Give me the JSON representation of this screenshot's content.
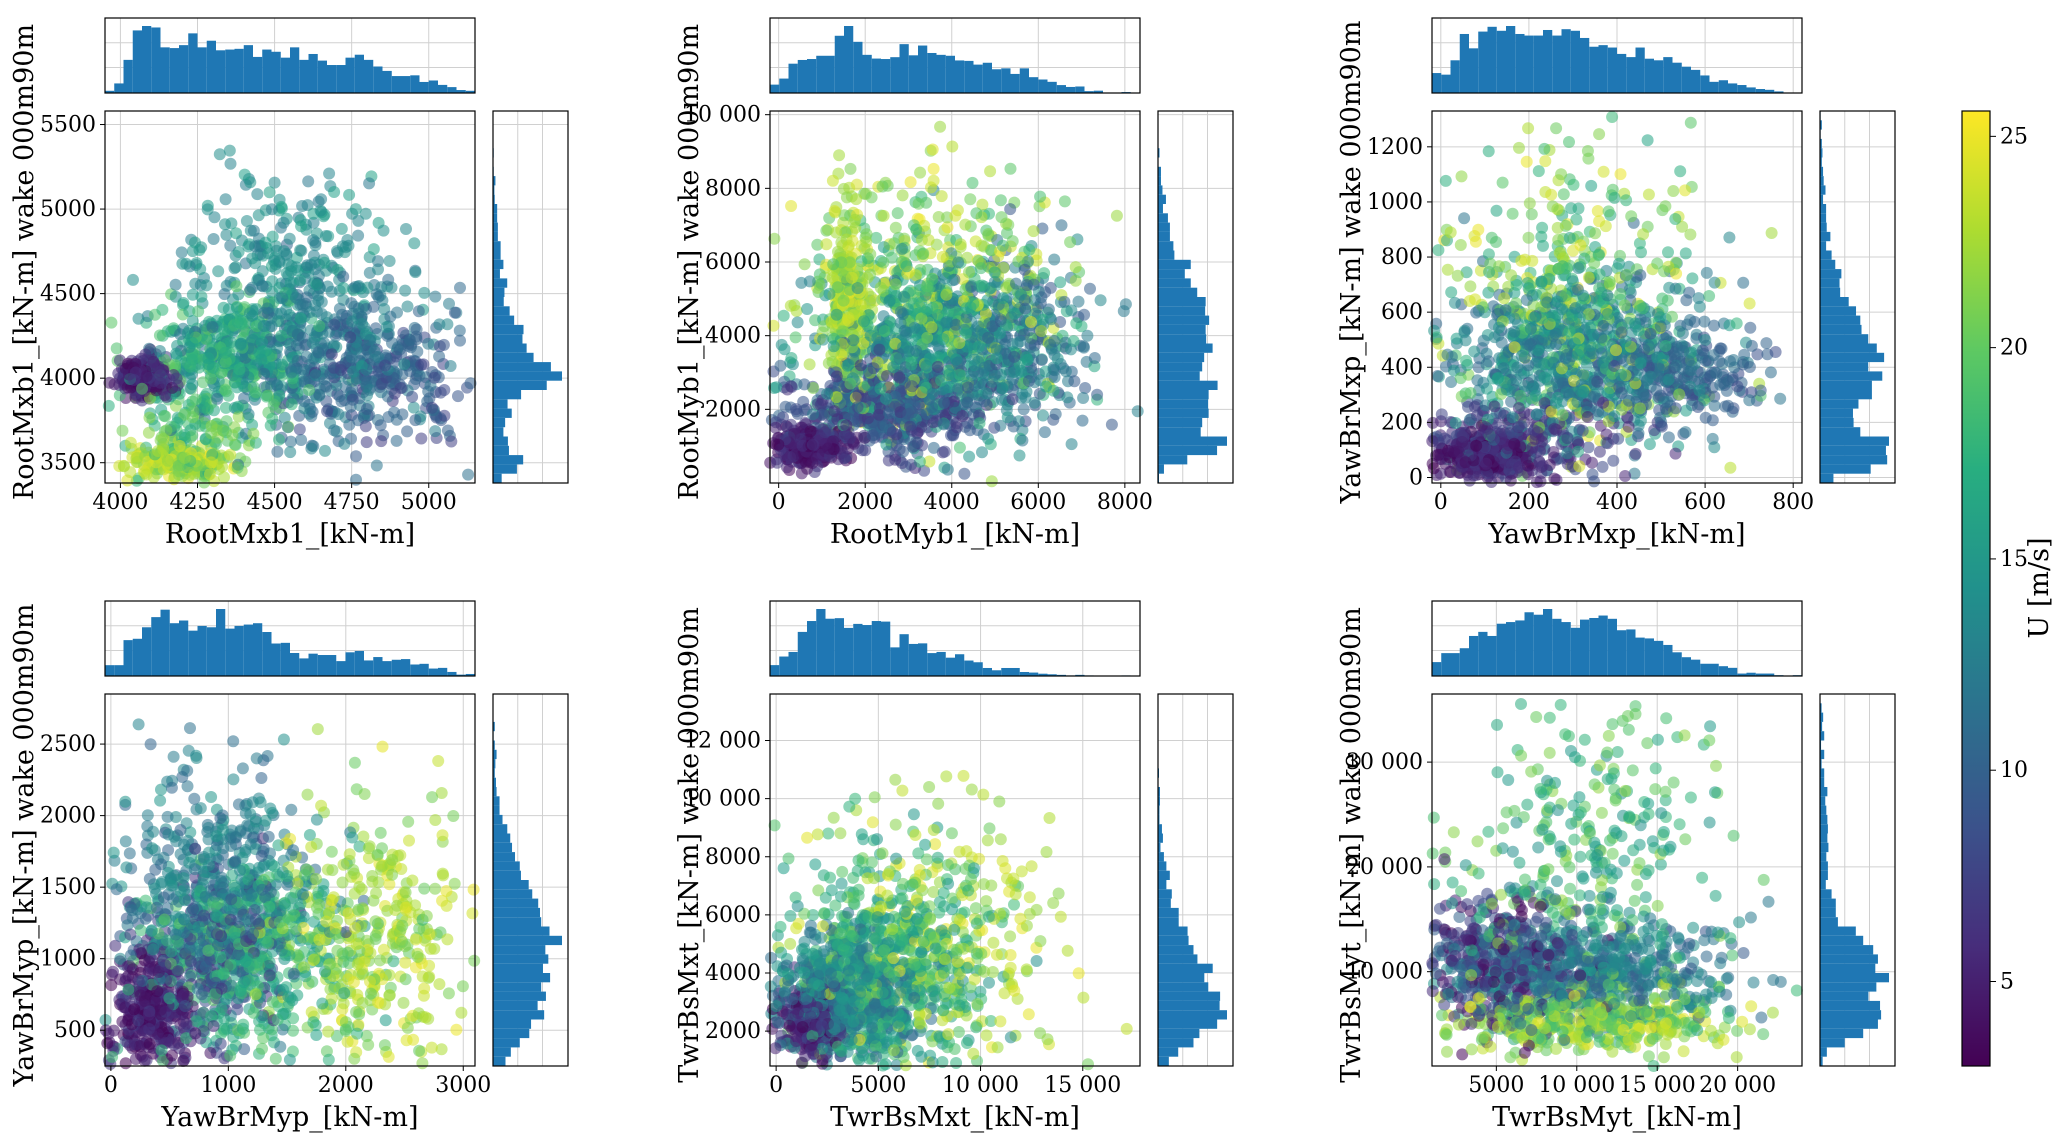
{
  "chart_data": [
    {
      "type": "scatter",
      "xlabel": "RootMxb1_[kN-m]",
      "ylabel": "RootMxb1_[kN-m] wake 000m90m",
      "xlim": [
        3950,
        5150
      ],
      "ylim": [
        3380,
        5580
      ],
      "xticks": [
        4000,
        4250,
        4500,
        4750,
        5000
      ],
      "xtick_labels": [
        "4000",
        "4250",
        "4500",
        "4750",
        "5000"
      ],
      "yticks": [
        3500,
        4000,
        4500,
        5000,
        5500
      ],
      "ytick_labels": [
        "3500",
        "4000",
        "4500",
        "5000",
        "5500"
      ],
      "clusters": [
        {
          "cx": 4080,
          "cy": 4010,
          "sx": 40,
          "sy": 55,
          "u": [
            3,
            7
          ],
          "n": 260
        },
        {
          "cx": 4200,
          "cy": 3500,
          "sx": 90,
          "sy": 50,
          "u": [
            20,
            25
          ],
          "n": 200
        },
        {
          "cx": 4250,
          "cy": 3700,
          "sx": 120,
          "sy": 120,
          "u": [
            16,
            22
          ],
          "n": 130
        },
        {
          "cx": 4350,
          "cy": 4150,
          "sx": 130,
          "sy": 160,
          "u": [
            14,
            20
          ],
          "n": 350
        },
        {
          "cx": 4650,
          "cy": 4150,
          "sx": 230,
          "sy": 250,
          "u": [
            10,
            14
          ],
          "n": 420
        },
        {
          "cx": 4550,
          "cy": 4650,
          "sx": 170,
          "sy": 280,
          "u": [
            12,
            16
          ],
          "n": 260
        },
        {
          "cx": 4850,
          "cy": 4000,
          "sx": 160,
          "sy": 200,
          "u": [
            7,
            11
          ],
          "n": 200
        }
      ]
    },
    {
      "type": "scatter",
      "xlabel": "RootMyb1_[kN-m]",
      "ylabel": "RootMyb1_[kN-m] wake 000m90m",
      "xlim": [
        -200,
        8350
      ],
      "ylim": [
        0,
        10100
      ],
      "xticks": [
        0,
        2000,
        4000,
        6000,
        8000
      ],
      "xtick_labels": [
        "0",
        "2000",
        "4000",
        "6000",
        "8000"
      ],
      "yticks": [
        2000,
        4000,
        6000,
        8000,
        10000
      ],
      "ytick_labels": [
        "2000",
        "4000",
        "6000",
        "8000",
        "10 000"
      ],
      "clusters": [
        {
          "cx": 700,
          "cy": 1000,
          "sx": 450,
          "sy": 250,
          "u": [
            3,
            7
          ],
          "n": 320
        },
        {
          "cx": 2500,
          "cy": 2000,
          "sx": 1100,
          "sy": 600,
          "u": [
            6,
            11
          ],
          "n": 450
        },
        {
          "cx": 3500,
          "cy": 3800,
          "sx": 1400,
          "sy": 1100,
          "u": [
            12,
            18
          ],
          "n": 600
        },
        {
          "cx": 1600,
          "cy": 5000,
          "sx": 250,
          "sy": 1300,
          "u": [
            20,
            25
          ],
          "n": 250
        },
        {
          "cx": 3600,
          "cy": 5200,
          "sx": 1500,
          "sy": 1700,
          "u": [
            18,
            25
          ],
          "n": 400
        },
        {
          "cx": 5200,
          "cy": 4000,
          "sx": 1200,
          "sy": 1300,
          "u": [
            9,
            14
          ],
          "n": 250
        }
      ]
    },
    {
      "type": "scatter",
      "xlabel": "YawBrMxp_[kN-m]",
      "ylabel": "YawBrMxp_[kN-m] wake 000m90m",
      "xlim": [
        -20,
        820
      ],
      "ylim": [
        -20,
        1330
      ],
      "xticks": [
        0,
        200,
        400,
        600,
        800
      ],
      "xtick_labels": [
        "0",
        "200",
        "400",
        "600",
        "800"
      ],
      "yticks": [
        0,
        200,
        400,
        600,
        800,
        1000,
        1200
      ],
      "ytick_labels": [
        "0",
        "200",
        "400",
        "600",
        "800",
        "1000",
        "1200"
      ],
      "clusters": [
        {
          "cx": 100,
          "cy": 80,
          "sx": 60,
          "sy": 40,
          "u": [
            3,
            7
          ],
          "n": 320
        },
        {
          "cx": 200,
          "cy": 150,
          "sx": 120,
          "sy": 80,
          "u": [
            5,
            9
          ],
          "n": 220
        },
        {
          "cx": 300,
          "cy": 450,
          "sx": 150,
          "sy": 150,
          "u": [
            10,
            16
          ],
          "n": 650
        },
        {
          "cx": 300,
          "cy": 650,
          "sx": 150,
          "sy": 280,
          "u": [
            16,
            25
          ],
          "n": 420
        },
        {
          "cx": 520,
          "cy": 380,
          "sx": 110,
          "sy": 90,
          "u": [
            8,
            12
          ],
          "n": 220
        }
      ]
    },
    {
      "type": "scatter",
      "xlabel": "YawBrMyp_[kN-m]",
      "ylabel": "YawBrMyp_[kN-m] wake 000m90m",
      "xlim": [
        -50,
        3100
      ],
      "ylim": [
        250,
        2850
      ],
      "xticks": [
        0,
        1000,
        2000,
        3000
      ],
      "xtick_labels": [
        "0",
        "1000",
        "2000",
        "3000"
      ],
      "yticks": [
        500,
        1000,
        1500,
        2000,
        2500
      ],
      "ytick_labels": [
        "500",
        "1000",
        "1500",
        "2000",
        "2500"
      ],
      "clusters": [
        {
          "cx": 350,
          "cy": 600,
          "sx": 180,
          "sy": 200,
          "u": [
            3,
            7
          ],
          "n": 320
        },
        {
          "cx": 800,
          "cy": 1000,
          "sx": 350,
          "sy": 300,
          "u": [
            6,
            10
          ],
          "n": 250
        },
        {
          "cx": 900,
          "cy": 1500,
          "sx": 400,
          "sy": 400,
          "u": [
            10,
            15
          ],
          "n": 450
        },
        {
          "cx": 1200,
          "cy": 1000,
          "sx": 450,
          "sy": 350,
          "u": [
            15,
            20
          ],
          "n": 450
        },
        {
          "cx": 2200,
          "cy": 1100,
          "sx": 400,
          "sy": 500,
          "u": [
            20,
            25
          ],
          "n": 350
        }
      ]
    },
    {
      "type": "scatter",
      "xlabel": "TwrBsMxt_[kN-m]",
      "ylabel": "TwrBsMxt_[kN-m] wake 000m90m",
      "xlim": [
        -300,
        17800
      ],
      "ylim": [
        800,
        13600
      ],
      "xticks": [
        0,
        5000,
        10000,
        15000
      ],
      "xtick_labels": [
        "0",
        "5000",
        "10 000",
        "15 000"
      ],
      "yticks": [
        2000,
        4000,
        6000,
        8000,
        10000,
        12000
      ],
      "ytick_labels": [
        "2000",
        "4000",
        "6000",
        "8000",
        "10 000",
        "12 000"
      ],
      "clusters": [
        {
          "cx": 1800,
          "cy": 2300,
          "sx": 800,
          "sy": 600,
          "u": [
            3,
            8
          ],
          "n": 260
        },
        {
          "cx": 3500,
          "cy": 3200,
          "sx": 1800,
          "sy": 1100,
          "u": [
            10,
            16
          ],
          "n": 550
        },
        {
          "cx": 5500,
          "cy": 4500,
          "sx": 2500,
          "sy": 1800,
          "u": [
            14,
            20
          ],
          "n": 500
        },
        {
          "cx": 8000,
          "cy": 5000,
          "sx": 3200,
          "sy": 2200,
          "u": [
            20,
            25
          ],
          "n": 300
        }
      ]
    },
    {
      "type": "scatter",
      "xlabel": "TwrBsMyt_[kN-m]",
      "ylabel": "TwrBsMyt_[kN-m] wake 000m90m",
      "xlim": [
        1000,
        24000
      ],
      "ylim": [
        1000,
        36500
      ],
      "xticks": [
        5000,
        10000,
        15000,
        20000
      ],
      "xtick_labels": [
        "5000",
        "10 000",
        "15 000",
        "20 000"
      ],
      "yticks": [
        10000,
        20000,
        30000
      ],
      "ytick_labels": [
        "10 000",
        "20 000",
        "30 000"
      ],
      "clusters": [
        {
          "cx": 5000,
          "cy": 11000,
          "sx": 2500,
          "sy": 3000,
          "u": [
            3,
            9
          ],
          "n": 300
        },
        {
          "cx": 10000,
          "cy": 10000,
          "sx": 4500,
          "sy": 2500,
          "u": [
            9,
            15
          ],
          "n": 600
        },
        {
          "cx": 11000,
          "cy": 5500,
          "sx": 4500,
          "sy": 1500,
          "u": [
            18,
            25
          ],
          "n": 400
        },
        {
          "cx": 11000,
          "cy": 20000,
          "sx": 4500,
          "sy": 8000,
          "u": [
            14,
            22
          ],
          "n": 350
        }
      ]
    }
  ],
  "colorbar": {
    "label": "U [m/s]",
    "vmin": 3,
    "vmax": 25.6,
    "colormap": "viridis",
    "ticks": [
      5,
      10,
      15,
      20,
      25
    ],
    "tick_labels": [
      "5",
      "10",
      "15",
      "20",
      "25"
    ]
  },
  "style": {
    "hist_color": "#1f77b4",
    "grid_color": "#d0d0d0",
    "marker_alpha": 0.55
  }
}
